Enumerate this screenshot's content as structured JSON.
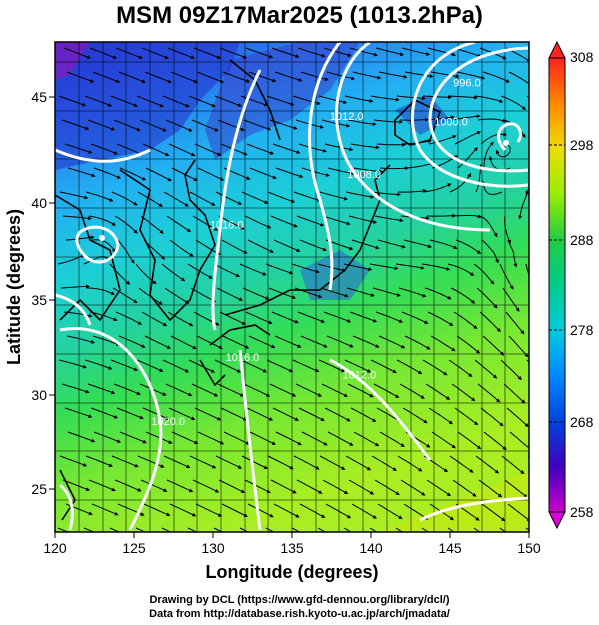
{
  "title": "MSM 09Z17Mar2025 (1013.2hPa)",
  "xlabel": "Longitude (degrees)",
  "ylabel": "Latitude  (degrees)",
  "credit_line1": "Drawing by DCL (https://www.gfd-dennou.org/library/dcl/)",
  "credit_line2": "Data from http://database.rish.kyoto-u.ac.jp/arch/jmadata/",
  "map": {
    "lon_range": [
      120,
      150
    ],
    "lat_range": [
      22.4,
      47.6
    ],
    "lon_ticks": [
      "120",
      "125",
      "130",
      "135",
      "140",
      "145",
      "150"
    ],
    "lat_ticks": [
      "25",
      "30",
      "35",
      "40",
      "45"
    ],
    "grid": true,
    "field": "temperature (K) with streamlines and isobars"
  },
  "colorbar": {
    "ticks": [
      "308",
      "298",
      "288",
      "278",
      "268",
      "258"
    ],
    "range": [
      258,
      308
    ],
    "colors": [
      "#cc00cc",
      "#4000c0",
      "#0044dd",
      "#0099ff",
      "#00cccc",
      "#22cc66",
      "#66ee22",
      "#ccee00",
      "#ffcc00",
      "#ff5500",
      "#ff2222"
    ]
  },
  "isobars": [
    {
      "label": "996.0",
      "lon": 145.2,
      "lat": 45.3
    },
    {
      "label": "1000.0",
      "lon": 144.0,
      "lat": 43.3
    },
    {
      "label": "1012.0",
      "lon": 137.4,
      "lat": 43.6
    },
    {
      "label": "1008.0",
      "lon": 138.5,
      "lat": 40.6
    },
    {
      "label": "1016.0",
      "lon": 129.8,
      "lat": 38.0
    },
    {
      "label": "1016.0",
      "lon": 130.8,
      "lat": 31.2
    },
    {
      "label": "1012.0",
      "lon": 138.2,
      "lat": 30.3
    },
    {
      "label": "1020.0",
      "lon": 126.1,
      "lat": 27.9
    }
  ],
  "lows": [
    {
      "lon": 147.4,
      "lat": 43.9
    },
    {
      "lon": 122.3,
      "lat": 38.2
    }
  ]
}
